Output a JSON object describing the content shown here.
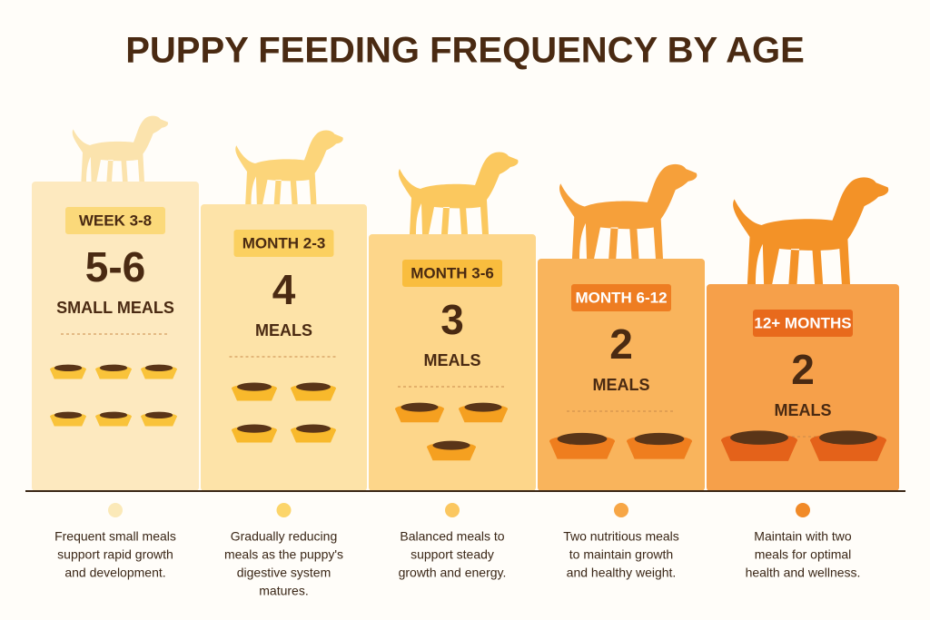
{
  "title": "PUPPY FEEDING FREQUENCY BY AGE",
  "stages": [
    {
      "label": "WEEK 3-8",
      "amount": "5-6",
      "unit": "SMALL MEALS",
      "description": [
        "Frequent small meals",
        "support rapid growth",
        "and development."
      ]
    },
    {
      "label": "MONTH 2-3",
      "amount": "4",
      "unit": "MEALS",
      "description": [
        "Gradually reducing",
        "meals as the puppy's",
        "digestive system",
        "matures."
      ]
    },
    {
      "label": "MONTH 3-6",
      "amount": "3",
      "unit": "MEALS",
      "description": [
        "Balanced meals to",
        "support steady",
        "growth and energy."
      ]
    },
    {
      "label": "MONTH 6-12",
      "amount": "2",
      "unit": "MEALS",
      "description": [
        "Two nutritious meals",
        "to maintain growth",
        "and healthy weight."
      ]
    },
    {
      "label": "12+ MONTHS",
      "amount": "2",
      "unit": "MEALS",
      "description": [
        "Maintain with two",
        "meals for optimal",
        "health and wellness."
      ]
    }
  ]
}
